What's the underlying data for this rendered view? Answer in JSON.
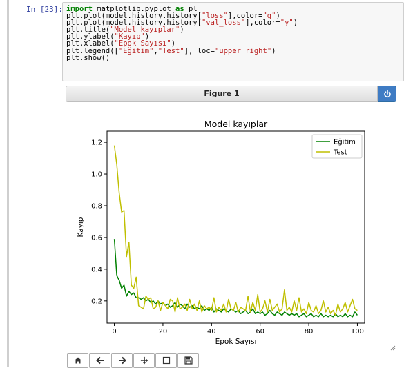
{
  "cell": {
    "prompt": "In [23]:",
    "code_lines": [
      "import matplotlib.pyplot as pl",
      "plt.plot(model.history.history[\"loss\"],color=\"g\")",
      "plt.plot(model.history.history[\"val_loss\"],color=\"y\")",
      "plt.title(\"Model kayıplar\")",
      "plt.ylabel(\"Kayıp\")",
      "plt.xlabel(\"Epok Sayısı\")",
      "plt.legend([\"Eğitim\",\"Test\"], loc=\"upper right\")",
      "plt.show()"
    ]
  },
  "figure": {
    "title": "Figure 1",
    "power_icon": "power-icon"
  },
  "toolbar": {
    "icons": [
      "home-icon",
      "back-arrow-icon",
      "forward-arrow-icon",
      "pan-move-icon",
      "zoom-rect-icon",
      "save-icon"
    ]
  },
  "chart_data": {
    "type": "line",
    "title": "Model kayıplar",
    "xlabel": "Epok Sayısı",
    "ylabel": "Kayıp",
    "xlim": [
      -3,
      103
    ],
    "ylim": [
      0.06,
      1.27
    ],
    "xticks": [
      0,
      20,
      40,
      60,
      80,
      100
    ],
    "yticks": [
      0.2,
      0.4,
      0.6,
      0.8,
      1.0,
      1.2
    ],
    "xtick_labels": [
      "0",
      "20",
      "40",
      "60",
      "80",
      "100"
    ],
    "ytick_labels": [
      "0.2",
      "0.4",
      "0.6",
      "0.8",
      "1.0",
      "1.2"
    ],
    "legend_position": "upper right",
    "grid": false,
    "series": [
      {
        "name": "Eğitim",
        "color": "#008000",
        "x_start": 0,
        "values": [
          0.59,
          0.36,
          0.33,
          0.28,
          0.3,
          0.23,
          0.26,
          0.24,
          0.25,
          0.22,
          0.22,
          0.21,
          0.22,
          0.2,
          0.21,
          0.19,
          0.2,
          0.18,
          0.2,
          0.18,
          0.19,
          0.17,
          0.18,
          0.16,
          0.17,
          0.19,
          0.16,
          0.18,
          0.17,
          0.15,
          0.18,
          0.16,
          0.17,
          0.15,
          0.16,
          0.15,
          0.17,
          0.14,
          0.15,
          0.14,
          0.16,
          0.13,
          0.15,
          0.14,
          0.13,
          0.15,
          0.14,
          0.13,
          0.15,
          0.14,
          0.13,
          0.14,
          0.12,
          0.13,
          0.14,
          0.12,
          0.13,
          0.15,
          0.12,
          0.13,
          0.12,
          0.13,
          0.11,
          0.12,
          0.14,
          0.12,
          0.11,
          0.13,
          0.12,
          0.11,
          0.13,
          0.12,
          0.11,
          0.12,
          0.11,
          0.12,
          0.1,
          0.11,
          0.12,
          0.1,
          0.11,
          0.12,
          0.1,
          0.11,
          0.1,
          0.12,
          0.1,
          0.11,
          0.1,
          0.11,
          0.1,
          0.12,
          0.1,
          0.11,
          0.1,
          0.12,
          0.1,
          0.11,
          0.1,
          0.13,
          0.11
        ]
      },
      {
        "name": "Test",
        "color": "#bfbf00",
        "x_start": 0,
        "values": [
          1.18,
          1.06,
          0.88,
          0.76,
          0.77,
          0.48,
          0.57,
          0.3,
          0.28,
          0.35,
          0.17,
          0.16,
          0.15,
          0.23,
          0.21,
          0.22,
          0.15,
          0.16,
          0.2,
          0.14,
          0.19,
          0.17,
          0.15,
          0.21,
          0.2,
          0.13,
          0.22,
          0.15,
          0.16,
          0.18,
          0.14,
          0.21,
          0.15,
          0.18,
          0.14,
          0.2,
          0.13,
          0.17,
          0.15,
          0.16,
          0.14,
          0.22,
          0.13,
          0.16,
          0.14,
          0.18,
          0.13,
          0.21,
          0.15,
          0.14,
          0.19,
          0.13,
          0.16,
          0.15,
          0.14,
          0.23,
          0.13,
          0.19,
          0.14,
          0.24,
          0.13,
          0.15,
          0.2,
          0.13,
          0.21,
          0.14,
          0.16,
          0.18,
          0.13,
          0.15,
          0.27,
          0.14,
          0.16,
          0.13,
          0.2,
          0.14,
          0.22,
          0.13,
          0.15,
          0.12,
          0.19,
          0.14,
          0.13,
          0.17,
          0.12,
          0.14,
          0.2,
          0.13,
          0.16,
          0.12,
          0.14,
          0.11,
          0.18,
          0.13,
          0.15,
          0.19,
          0.13,
          0.17,
          0.21,
          0.15,
          0.14
        ]
      }
    ]
  }
}
